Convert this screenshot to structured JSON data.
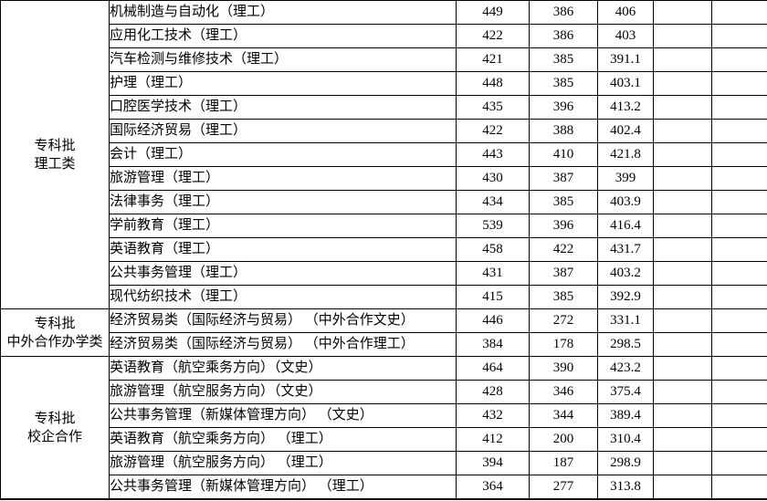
{
  "colors": {
    "background": "#ffffff",
    "border": "#000000",
    "text": "#000000"
  },
  "table": {
    "empty_columns": 2,
    "sections": [
      {
        "category_lines": [
          "专科批",
          "理工类"
        ],
        "rows": [
          {
            "major": "机械制造与自动化（理工）",
            "scores": [
              "449",
              "386",
              "406"
            ]
          },
          {
            "major": "应用化工技术（理工）",
            "scores": [
              "422",
              "386",
              "403"
            ]
          },
          {
            "major": "汽车检测与维修技术（理工）",
            "scores": [
              "421",
              "385",
              "391.1"
            ]
          },
          {
            "major": "护理（理工）",
            "scores": [
              "448",
              "385",
              "403.1"
            ]
          },
          {
            "major": "口腔医学技术（理工）",
            "scores": [
              "435",
              "396",
              "413.2"
            ]
          },
          {
            "major": "国际经济贸易（理工）",
            "scores": [
              "422",
              "388",
              "402.4"
            ]
          },
          {
            "major": "会计（理工）",
            "scores": [
              "443",
              "410",
              "421.8"
            ]
          },
          {
            "major": "旅游管理（理工）",
            "scores": [
              "430",
              "387",
              "399"
            ]
          },
          {
            "major": "法律事务（理工）",
            "scores": [
              "434",
              "385",
              "403.9"
            ]
          },
          {
            "major": "学前教育（理工）",
            "scores": [
              "539",
              "396",
              "416.4"
            ]
          },
          {
            "major": "英语教育（理工）",
            "scores": [
              "458",
              "422",
              "431.7"
            ]
          },
          {
            "major": "公共事务管理（理工）",
            "scores": [
              "431",
              "387",
              "403.2"
            ]
          },
          {
            "major": "现代纺织技术（理工）",
            "scores": [
              "415",
              "385",
              "392.9"
            ]
          }
        ]
      },
      {
        "category_lines": [
          "专科批",
          "中外合作办学类"
        ],
        "rows": [
          {
            "major": "经济贸易类（国际经济与贸易） （中外合作文史）",
            "scores": [
              "446",
              "272",
              "331.1"
            ]
          },
          {
            "major": "经济贸易类（国际经济与贸易） （中外合作理工）",
            "scores": [
              "384",
              "178",
              "298.5"
            ]
          }
        ]
      },
      {
        "category_lines": [
          "专科批",
          "校企合作"
        ],
        "rows": [
          {
            "major": "英语教育（航空乘务方向）（文史）",
            "scores": [
              "464",
              "390",
              "423.2"
            ]
          },
          {
            "major": "旅游管理（航空服务方向）（文史）",
            "scores": [
              "428",
              "346",
              "375.4"
            ]
          },
          {
            "major": "公共事务管理（新媒体管理方向） （文史）",
            "scores": [
              "432",
              "344",
              "389.4"
            ]
          },
          {
            "major": "英语教育（航空乘务方向） （理工）",
            "scores": [
              "412",
              "200",
              "310.4"
            ]
          },
          {
            "major": "旅游管理（航空服务方向） （理工）",
            "scores": [
              "394",
              "187",
              "298.9"
            ]
          },
          {
            "major": "公共事务管理（新媒体管理方向） （理工）",
            "scores": [
              "364",
              "277",
              "313.8"
            ]
          }
        ]
      }
    ]
  }
}
